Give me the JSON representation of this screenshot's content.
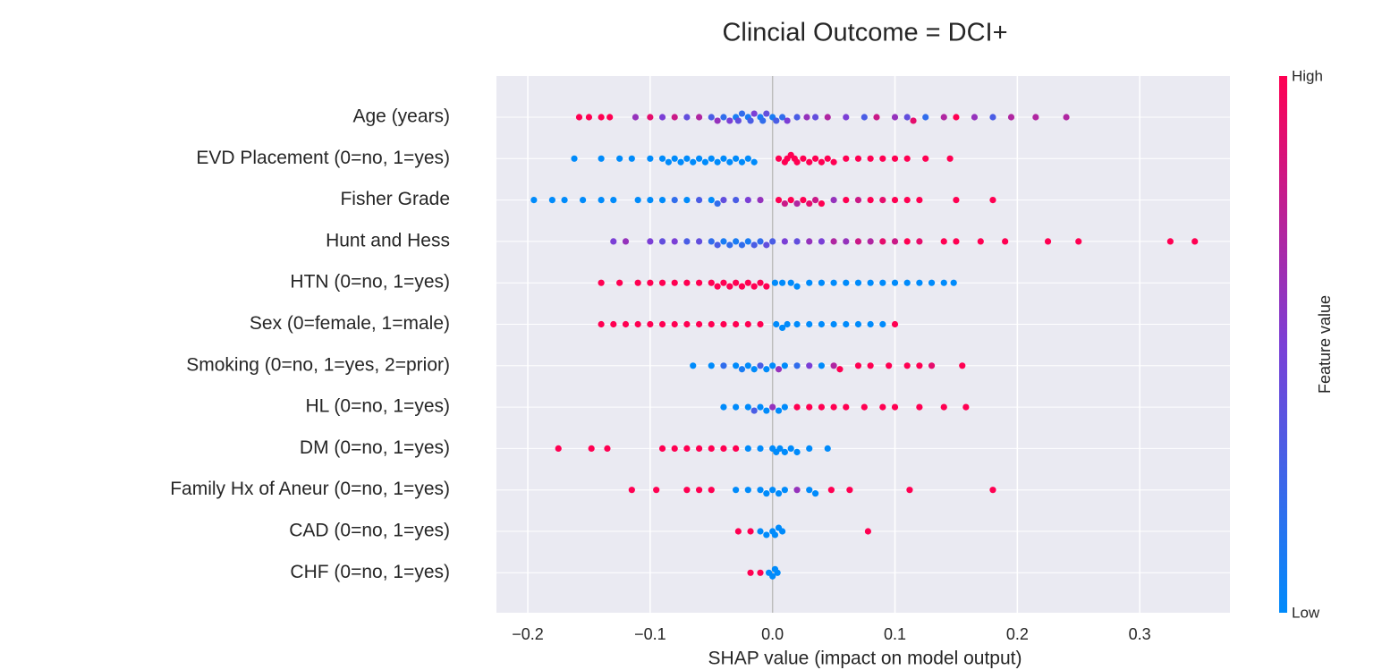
{
  "chart_data": {
    "type": "beeswarm",
    "title": "Clincial Outcome = DCI+",
    "x_label": "SHAP value (impact on model output)",
    "xlim": [
      -0.2256,
      0.3737
    ],
    "xticks": [
      {
        "value": -0.2,
        "label": "−0.2"
      },
      {
        "value": -0.1,
        "label": "−0.1"
      },
      {
        "value": 0,
        "label": "0.0"
      },
      0.1,
      0.2,
      0.3
    ],
    "grid": true,
    "colorbar": {
      "label": "Feature value",
      "high": "High",
      "low": "Low",
      "colors": [
        "#008bfb",
        "#7b3fd6",
        "#ff0052"
      ]
    },
    "series": [
      {
        "name": "Age (years)",
        "values": [
          -0.158,
          -0.15,
          -0.14,
          -0.133,
          -0.112,
          -0.1,
          -0.09,
          -0.08,
          -0.07,
          -0.06,
          -0.05,
          -0.045,
          -0.04,
          -0.035,
          -0.03,
          -0.028,
          -0.025,
          -0.02,
          -0.018,
          -0.015,
          -0.01,
          -0.008,
          -0.005,
          0,
          0.003,
          0.008,
          0.012,
          0.02,
          0.028,
          0.035,
          0.045,
          0.06,
          0.075,
          0.085,
          0.1,
          0.11,
          0.115,
          0.125,
          0.14,
          0.15,
          0.165,
          0.18,
          0.195,
          0.215,
          0.24
        ],
        "feature_values": [
          1,
          1,
          1,
          1,
          0.6,
          0.9,
          0.5,
          0.8,
          0.4,
          0.7,
          0.3,
          0.6,
          0.2,
          0.5,
          0.1,
          0.4,
          0.2,
          0.1,
          0.3,
          0.5,
          0.1,
          0.2,
          0.4,
          0.1,
          0.3,
          0.2,
          0.5,
          0.3,
          0.6,
          0.4,
          0.7,
          0.5,
          0.3,
          0.8,
          0.6,
          0.4,
          0.9,
          0.2,
          0.7,
          1,
          0.6,
          0.3,
          0.7,
          0.7,
          0.7
        ]
      },
      {
        "name": "EVD Placement (0=no, 1=yes)",
        "values": [
          -0.162,
          -0.14,
          -0.125,
          -0.115,
          -0.1,
          -0.09,
          -0.085,
          -0.08,
          -0.075,
          -0.07,
          -0.065,
          -0.06,
          -0.055,
          -0.05,
          -0.045,
          -0.04,
          -0.035,
          -0.03,
          -0.025,
          -0.02,
          -0.015,
          0.005,
          0.01,
          0.012,
          0.015,
          0.018,
          0.02,
          0.025,
          0.03,
          0.035,
          0.04,
          0.045,
          0.05,
          0.06,
          0.07,
          0.08,
          0.09,
          0.1,
          0.11,
          0.125,
          0.145
        ],
        "feature_values": [
          0,
          0,
          0,
          0,
          0,
          0,
          0,
          0,
          0,
          0,
          0,
          0,
          0,
          0,
          0,
          0,
          0,
          0,
          0,
          0,
          0,
          1,
          1,
          1,
          1,
          1,
          1,
          1,
          1,
          1,
          1,
          1,
          1,
          1,
          1,
          1,
          1,
          1,
          1,
          1,
          1
        ]
      },
      {
        "name": "Fisher Grade",
        "values": [
          -0.195,
          -0.18,
          -0.17,
          -0.155,
          -0.14,
          -0.13,
          -0.11,
          -0.1,
          -0.09,
          -0.08,
          -0.07,
          -0.06,
          -0.05,
          -0.045,
          -0.04,
          -0.03,
          -0.02,
          -0.01,
          0.005,
          0.01,
          0.015,
          0.02,
          0.025,
          0.03,
          0.035,
          0.04,
          0.05,
          0.06,
          0.07,
          0.08,
          0.09,
          0.1,
          0.11,
          0.12,
          0.15,
          0.18
        ],
        "feature_values": [
          0,
          0,
          0,
          0,
          0,
          0,
          0,
          0,
          0,
          0.2,
          0,
          0.3,
          0,
          0.2,
          0.4,
          0.3,
          0.5,
          0.6,
          1,
          0.8,
          1,
          0.7,
          1,
          0.9,
          0.8,
          1,
          0.6,
          1,
          0.8,
          1,
          0.9,
          1,
          1,
          1,
          1,
          1
        ]
      },
      {
        "name": "Hunt and Hess",
        "values": [
          -0.13,
          -0.12,
          -0.1,
          -0.09,
          -0.08,
          -0.07,
          -0.06,
          -0.05,
          -0.045,
          -0.04,
          -0.035,
          -0.03,
          -0.025,
          -0.02,
          -0.015,
          -0.01,
          -0.005,
          0,
          0.01,
          0.02,
          0.03,
          0.04,
          0.05,
          0.06,
          0.07,
          0.08,
          0.09,
          0.1,
          0.11,
          0.12,
          0.14,
          0.15,
          0.17,
          0.19,
          0.225,
          0.25,
          0.325,
          0.345
        ],
        "feature_values": [
          0.5,
          0.6,
          0.5,
          0.4,
          0.5,
          0.3,
          0.4,
          0.2,
          0.3,
          0.1,
          0.2,
          0.1,
          0.2,
          0.1,
          0.3,
          0.2,
          0.4,
          0.3,
          0.5,
          0.4,
          0.6,
          0.5,
          0.7,
          0.6,
          0.8,
          0.7,
          0.9,
          0.8,
          1,
          0.9,
          1,
          1,
          1,
          1,
          1,
          1,
          1,
          1
        ]
      },
      {
        "name": "HTN (0=no, 1=yes)",
        "values": [
          -0.14,
          -0.125,
          -0.11,
          -0.1,
          -0.09,
          -0.08,
          -0.07,
          -0.06,
          -0.05,
          -0.045,
          -0.04,
          -0.035,
          -0.03,
          -0.025,
          -0.02,
          -0.015,
          -0.01,
          -0.005,
          0.002,
          0.008,
          0.015,
          0.02,
          0.03,
          0.04,
          0.05,
          0.06,
          0.07,
          0.08,
          0.09,
          0.1,
          0.11,
          0.12,
          0.13,
          0.14,
          0.148
        ],
        "feature_values": [
          1,
          1,
          1,
          1,
          1,
          1,
          1,
          1,
          1,
          1,
          1,
          1,
          1,
          1,
          1,
          1,
          1,
          1,
          0,
          0,
          0,
          0,
          0,
          0,
          0,
          0,
          0,
          0,
          0,
          0,
          0,
          0,
          0,
          0,
          0
        ]
      },
      {
        "name": "Sex (0=female, 1=male)",
        "values": [
          -0.14,
          -0.13,
          -0.12,
          -0.11,
          -0.1,
          -0.09,
          -0.08,
          -0.07,
          -0.06,
          -0.05,
          -0.04,
          -0.03,
          -0.02,
          -0.01,
          0.003,
          0.008,
          0.012,
          0.02,
          0.03,
          0.04,
          0.05,
          0.06,
          0.07,
          0.08,
          0.09,
          0.1
        ],
        "feature_values": [
          1,
          1,
          1,
          1,
          1,
          1,
          1,
          1,
          1,
          1,
          1,
          1,
          1,
          1,
          0,
          0,
          0,
          0,
          0,
          0,
          0,
          0,
          0,
          0,
          0,
          1
        ]
      },
      {
        "name": "Smoking (0=no, 1=yes, 2=prior)",
        "values": [
          -0.065,
          -0.05,
          -0.04,
          -0.03,
          -0.025,
          -0.02,
          -0.015,
          -0.01,
          -0.005,
          0,
          0.005,
          0.01,
          0.02,
          0.03,
          0.04,
          0.05,
          0.055,
          0.07,
          0.08,
          0.095,
          0.11,
          0.12,
          0.13,
          0.155
        ],
        "feature_values": [
          0,
          0,
          0.2,
          0,
          0.1,
          0,
          0,
          0.3,
          0,
          0,
          0.6,
          0,
          0.2,
          0.5,
          0,
          0.7,
          1,
          1,
          1,
          1,
          1,
          1,
          0.9,
          1
        ]
      },
      {
        "name": "HL (0=no, 1=yes)",
        "values": [
          -0.04,
          -0.03,
          -0.02,
          -0.015,
          -0.01,
          -0.005,
          0,
          0.005,
          0.01,
          0.02,
          0.03,
          0.04,
          0.05,
          0.06,
          0.075,
          0.09,
          0.1,
          0.12,
          0.14,
          0.158
        ],
        "feature_values": [
          0,
          0,
          0,
          0.3,
          0,
          0,
          0.6,
          0,
          0,
          1,
          1,
          1,
          1,
          1,
          1,
          1,
          1,
          1,
          1,
          1
        ]
      },
      {
        "name": "DM (0=no, 1=yes)",
        "values": [
          -0.175,
          -0.148,
          -0.135,
          -0.09,
          -0.08,
          -0.07,
          -0.06,
          -0.05,
          -0.04,
          -0.03,
          -0.02,
          -0.01,
          0,
          0.003,
          0.006,
          0.01,
          0.015,
          0.02,
          0.03,
          0.045
        ],
        "feature_values": [
          1,
          1,
          1,
          1,
          1,
          1,
          1,
          1,
          1,
          1,
          0,
          0,
          0,
          0,
          0,
          0,
          0,
          0,
          0,
          0
        ]
      },
      {
        "name": "Family Hx of Aneur (0=no, 1=yes)",
        "values": [
          -0.115,
          -0.095,
          -0.07,
          -0.06,
          -0.05,
          -0.03,
          -0.02,
          -0.01,
          -0.005,
          0,
          0.005,
          0.01,
          0.02,
          0.03,
          0.035,
          0.048,
          0.063,
          0.112,
          0.18
        ],
        "feature_values": [
          1,
          1,
          1,
          1,
          1,
          0,
          0,
          0,
          0,
          0,
          0,
          0,
          0.6,
          0,
          0,
          1,
          1,
          1,
          1
        ]
      },
      {
        "name": "CAD (0=no, 1=yes)",
        "values": [
          -0.028,
          -0.018,
          -0.01,
          -0.005,
          0,
          0.002,
          0.005,
          0.008,
          0.078
        ],
        "feature_values": [
          1,
          1,
          0,
          0,
          0,
          0,
          0,
          0,
          1
        ]
      },
      {
        "name": "CHF (0=no, 1=yes)",
        "values": [
          -0.018,
          -0.01,
          -0.003,
          0,
          0.002,
          0.004
        ],
        "feature_values": [
          1,
          1,
          0,
          0,
          0,
          0
        ]
      }
    ]
  }
}
